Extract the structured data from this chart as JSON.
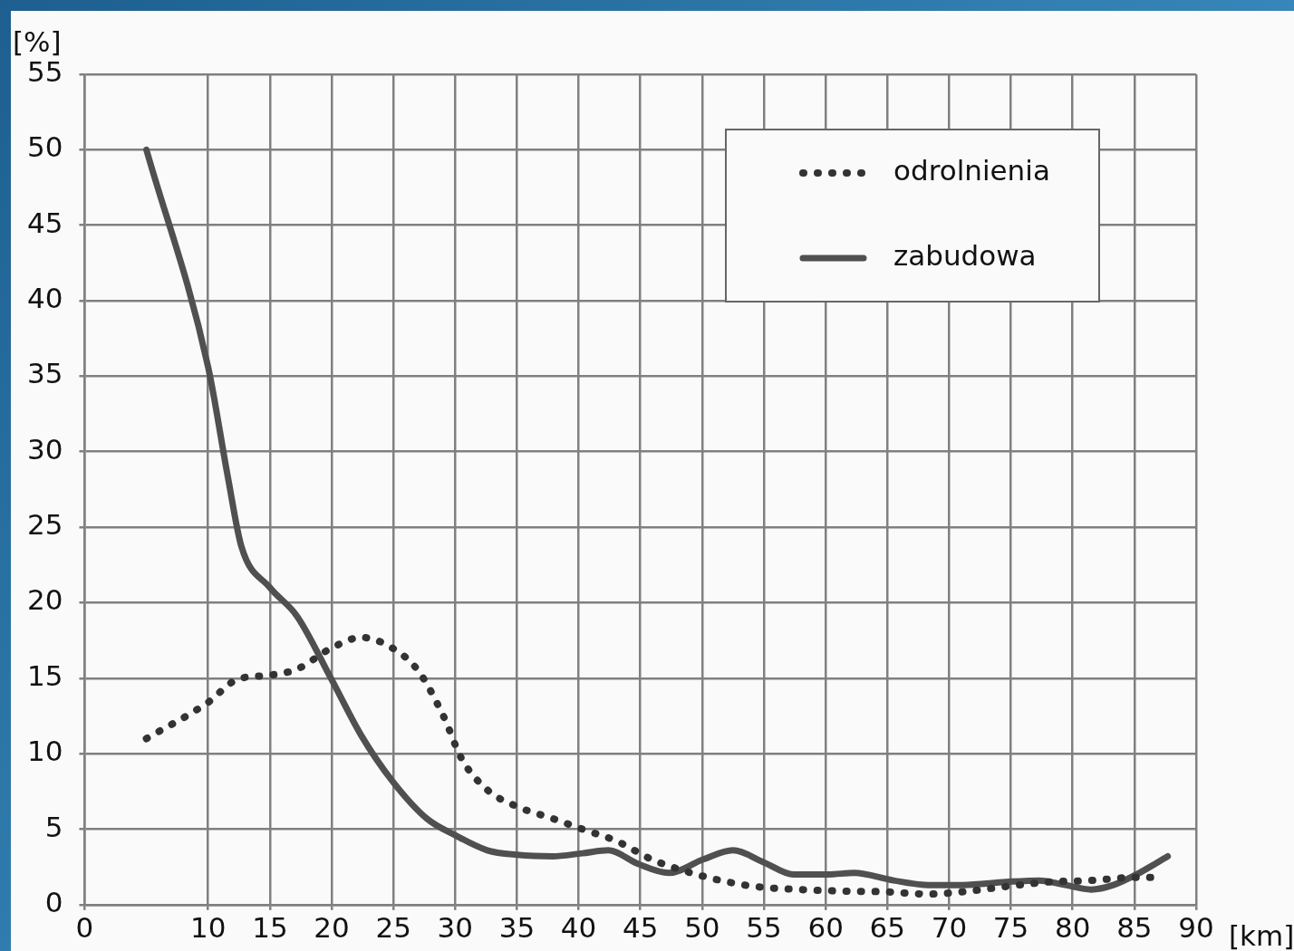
{
  "chart_data": {
    "type": "line",
    "xlabel": "[km]",
    "ylabel": "[%]",
    "xlim": [
      0,
      90
    ],
    "xticks": [
      0,
      10,
      15,
      20,
      25,
      30,
      35,
      40,
      45,
      50,
      55,
      60,
      65,
      70,
      75,
      80,
      85,
      90
    ],
    "ylim": [
      0,
      55
    ],
    "yticks": [
      0,
      5,
      10,
      15,
      20,
      25,
      30,
      35,
      40,
      45,
      50,
      55
    ],
    "grid": true,
    "legend": "top right",
    "marker": "none",
    "series": [
      {
        "name": "odrolnienia",
        "color": "#333333",
        "line_style": "dotted",
        "x": [
          5,
          10,
          12.3,
          15,
          17.2,
          20,
          22.4,
          24.9,
          27,
          29.1,
          30.5,
          32.6,
          35,
          37.9,
          40.3,
          43.1,
          45.9,
          48.7,
          51.5,
          54.3,
          57.8,
          61.3,
          64.8,
          68.3,
          71.1,
          74.6,
          78.1,
          81.5,
          85,
          87
        ],
        "values": [
          11.0,
          13.4,
          14.9,
          15.2,
          15.6,
          17.0,
          17.7,
          17.0,
          15.5,
          12.4,
          9.7,
          7.6,
          6.5,
          5.7,
          5.0,
          4.2,
          3.0,
          2.2,
          1.6,
          1.2,
          1.0,
          0.9,
          0.85,
          0.7,
          0.85,
          1.2,
          1.5,
          1.6,
          1.8,
          1.8
        ]
      },
      {
        "name": "zabudowa",
        "color": "#505050",
        "line_style": "solid",
        "x": [
          5,
          10,
          11.6,
          12.7,
          15,
          17.2,
          20,
          22.4,
          24.9,
          27.7,
          30,
          32.6,
          35,
          37.9,
          40.3,
          42.4,
          44.8,
          47.3,
          50.1,
          52.5,
          55,
          57.4,
          60.2,
          62.3,
          65.5,
          68.3,
          71.1,
          74.6,
          77.3,
          79.4,
          81.5,
          83.3,
          85.4,
          87.7
        ],
        "values": [
          50,
          35.6,
          28.3,
          23.7,
          21,
          19.1,
          14.9,
          11.2,
          8.2,
          5.7,
          4.6,
          3.6,
          3.3,
          3.2,
          3.4,
          3.6,
          2.7,
          2.1,
          3.0,
          3.6,
          2.8,
          2.0,
          2.0,
          2.1,
          1.6,
          1.3,
          1.3,
          1.5,
          1.6,
          1.3,
          1.0,
          1.3,
          2.1,
          3.2
        ]
      }
    ]
  }
}
